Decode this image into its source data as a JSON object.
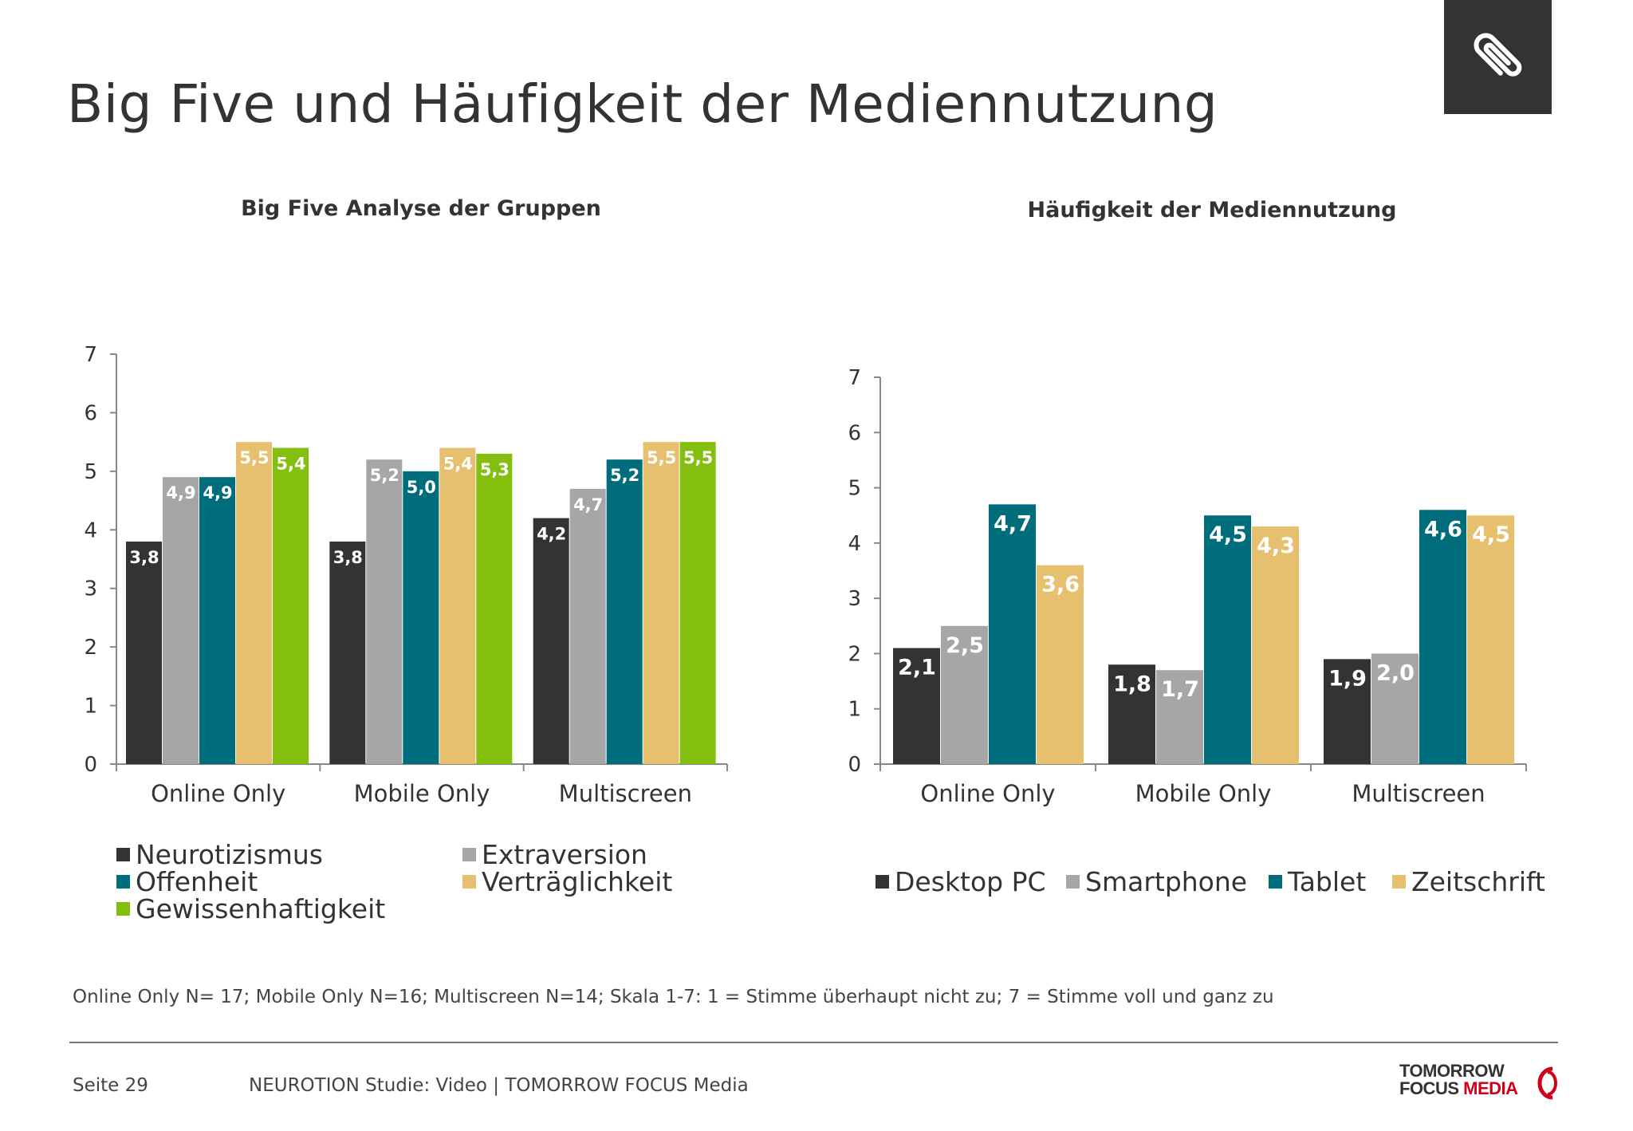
{
  "title": "Big Five und Häufigkeit der Mediennutzung",
  "icons": {
    "corner": "paperclip-icon"
  },
  "colors": {
    "dark_gray": "#333333",
    "light_gray": "#a6a6a6",
    "teal": "#006d7c",
    "gold": "#e6c06e",
    "green": "#84be0f",
    "logo_red": "#d0001b"
  },
  "chart_data": [
    {
      "type": "bar",
      "title": "Big Five Analyse der Gruppen",
      "categories": [
        "Online Only",
        "Mobile Only",
        "Multiscreen"
      ],
      "ylim": [
        0,
        7
      ],
      "yticks": [
        0,
        1,
        2,
        3,
        4,
        5,
        6,
        7
      ],
      "grid": false,
      "legend_position": "bottom",
      "series": [
        {
          "name": "Neurotizismus",
          "color": "#333333",
          "values": [
            3.8,
            3.8,
            4.2
          ],
          "labels": [
            "3,8",
            "3,8",
            "4,2"
          ]
        },
        {
          "name": "Extraversion",
          "color": "#a6a6a6",
          "values": [
            4.9,
            5.2,
            4.7
          ],
          "labels": [
            "4,9",
            "5,2",
            "4,7"
          ]
        },
        {
          "name": "Offenheit",
          "color": "#006d7c",
          "values": [
            4.9,
            5.0,
            5.2
          ],
          "labels": [
            "4,9",
            "5,0",
            "5,2"
          ]
        },
        {
          "name": "Verträglichkeit",
          "color": "#e6c06e",
          "values": [
            5.5,
            5.4,
            5.5
          ],
          "labels": [
            "5,5",
            "5,4",
            "5,5"
          ]
        },
        {
          "name": "Gewissenhaftigkeit",
          "color": "#84be0f",
          "values": [
            5.4,
            5.3,
            5.5
          ],
          "labels": [
            "5,4",
            "5,3",
            "5,5"
          ]
        }
      ]
    },
    {
      "type": "bar",
      "title": "Häufigkeit der Mediennutzung",
      "categories": [
        "Online Only",
        "Mobile Only",
        "Multiscreen"
      ],
      "ylim": [
        0,
        7
      ],
      "yticks": [
        0,
        1,
        2,
        3,
        4,
        5,
        6,
        7
      ],
      "grid": false,
      "legend_position": "bottom",
      "series": [
        {
          "name": "Desktop PC",
          "color": "#333333",
          "values": [
            2.1,
            1.8,
            1.9
          ],
          "labels": [
            "2,1",
            "1,8",
            "1,9"
          ]
        },
        {
          "name": "Smartphone",
          "color": "#a6a6a6",
          "values": [
            2.5,
            1.7,
            2.0
          ],
          "labels": [
            "2,5",
            "1,7",
            "2,0"
          ]
        },
        {
          "name": "Tablet",
          "color": "#006d7c",
          "values": [
            4.7,
            4.5,
            4.6
          ],
          "labels": [
            "4,7",
            "4,5",
            "4,6"
          ]
        },
        {
          "name": "Zeitschrift",
          "color": "#e6c06e",
          "values": [
            3.6,
            4.3,
            4.5
          ],
          "labels": [
            "3,6",
            "4,3",
            "4,5"
          ]
        }
      ]
    }
  ],
  "footnote": "Online Only N= 17; Mobile Only N=16; Multiscreen N=14; Skala 1-7: 1 = Stimme überhaupt nicht zu; 7 = Stimme voll und ganz zu",
  "footer": {
    "page": "Seite 29",
    "study": "NEUROTION Studie: Video | TOMORROW FOCUS Media",
    "logo_line1": "TOMORROW",
    "logo_line2a": "FOCUS",
    "logo_line2b": "MEDIA"
  }
}
